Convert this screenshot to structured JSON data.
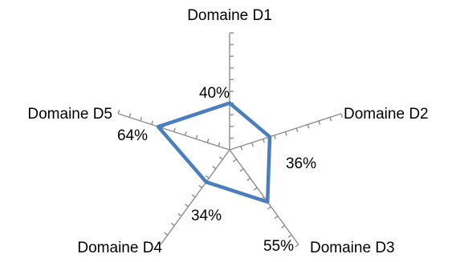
{
  "chart_data": {
    "type": "radar",
    "categories": [
      "Domaine D1",
      "Domaine D2",
      "Domaine D3",
      "Domaine D4",
      "Domaine D5"
    ],
    "series": [
      {
        "values": [
          40,
          36,
          55,
          34,
          64
        ],
        "data_labels": [
          "40%",
          "36%",
          "55%",
          "34%",
          "64%"
        ]
      }
    ],
    "rmax": 100,
    "tick_step": 10,
    "series_color": "#4a7ebf",
    "axis_color": "#8c8c8c"
  }
}
